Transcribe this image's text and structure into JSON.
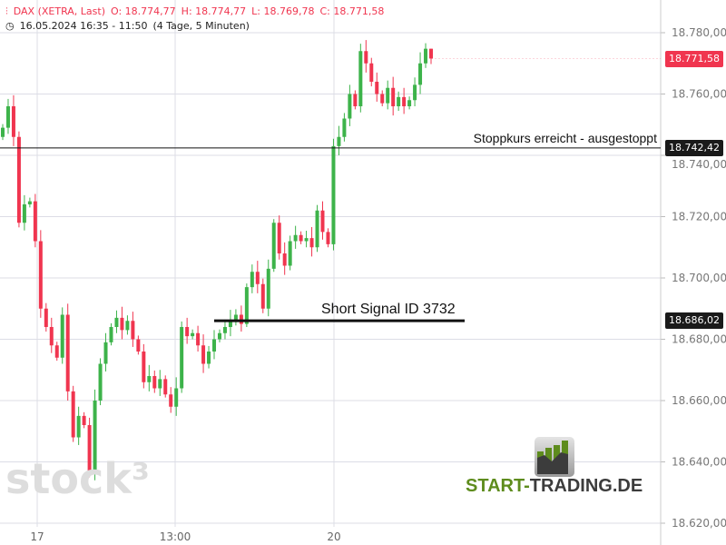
{
  "header": {
    "symbol": "DAX (XETRA, Last)",
    "open": "O: 18.774,77",
    "high": "H: 18.774,77",
    "low": "L: 18.769,78",
    "close": "C: 18.771,58",
    "range": "16.05.2024 16:35 - 11:50",
    "interval": "(4 Tage, 5 Minuten)"
  },
  "annotations": {
    "stop_text": "Stoppkurs erreicht - ausgestoppt",
    "short_text": "Short Signal  ID 3732"
  },
  "price_tags": {
    "last": "18.771,58",
    "stop": "18.742,42",
    "short": "18.686,02"
  },
  "watermark": "stock³",
  "logo": "START-TRADING.DE",
  "logo_parts": [
    "START-",
    "TRADING.DE"
  ],
  "colors": {
    "up": "#3db34a",
    "down": "#f0354f",
    "grid": "#dcdde6",
    "logo_green": "#5e8c1d",
    "logo_dark": "#3c3c3c"
  },
  "chart_data": {
    "type": "candlestick",
    "ylim": [
      18615,
      18790
    ],
    "yticks": [
      18780,
      18760,
      18740,
      18720,
      18700,
      18680,
      18660,
      18640,
      18620
    ],
    "ytick_labels": [
      "18.780,00",
      "18.760,00",
      "18.740,00",
      "18.720,00",
      "18.700,00",
      "18.680,00",
      "18.660,00",
      "18.640,00",
      "18.620,00"
    ],
    "xtick_labels": [
      "17",
      "13:00",
      "20"
    ],
    "grid": true,
    "closes": [
      18749,
      18756,
      18746,
      18718,
      18724,
      18725,
      18712,
      18690,
      18684,
      18678,
      18674,
      18688,
      18663,
      18648,
      18655,
      18652,
      18637,
      18660,
      18672,
      18679,
      18684,
      18687,
      18683,
      18686,
      18680,
      18676,
      18666,
      18668,
      18664,
      18667,
      18662,
      18658,
      18664,
      18684,
      18681,
      18682,
      18678,
      18672,
      18676,
      18680,
      18682,
      18684,
      18686,
      18688,
      18685,
      18697,
      18702,
      18698,
      18690,
      18703,
      18718,
      18708,
      18704,
      18712,
      18714,
      18712,
      18713,
      18710,
      18722,
      18715,
      18711,
      18743,
      18746,
      18752,
      18760,
      18756,
      18774,
      18770,
      18764,
      18760,
      18757,
      18762,
      18756,
      18759,
      18756,
      18758,
      18763,
      18770,
      18774.77,
      18771.58
    ],
    "last_bar": {
      "open": 18774.77,
      "high": 18774.77,
      "low": 18769.78,
      "close": 18771.58
    },
    "levels": [
      {
        "label": "Stoppkurs erreicht - ausgestoppt",
        "value": 18742.42
      },
      {
        "label": "Short Signal  ID 3732",
        "value": 18686.02
      }
    ]
  }
}
